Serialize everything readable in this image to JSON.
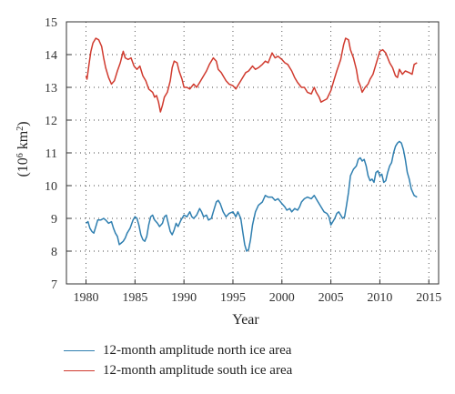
{
  "chart_data": {
    "type": "line",
    "xlabel": "Year",
    "ylabel_base": "(10",
    "ylabel_exp1": "6",
    "ylabel_unit": " km",
    "ylabel_exp2": "2",
    "ylabel_close": ")",
    "xlim": [
      1978,
      2016
    ],
    "ylim": [
      7,
      15
    ],
    "xticks": [
      "1980",
      "1985",
      "1990",
      "1995",
      "2000",
      "2005",
      "2010",
      "2015"
    ],
    "yticks": [
      "7",
      "8",
      "9",
      "10",
      "11",
      "12",
      "13",
      "14",
      "15"
    ],
    "grid": "dotted",
    "legend_position": "bottom",
    "series": [
      {
        "name": "12-month amplitude north ice area",
        "color": "#2f7fb0",
        "points": [
          [
            1980.0,
            8.85
          ],
          [
            1980.2,
            8.9
          ],
          [
            1980.4,
            8.7
          ],
          [
            1980.6,
            8.6
          ],
          [
            1980.8,
            8.55
          ],
          [
            1981.0,
            8.75
          ],
          [
            1981.2,
            8.95
          ],
          [
            1981.5,
            8.95
          ],
          [
            1981.8,
            9.0
          ],
          [
            1982.0,
            8.95
          ],
          [
            1982.3,
            8.85
          ],
          [
            1982.6,
            8.9
          ],
          [
            1982.8,
            8.7
          ],
          [
            1983.0,
            8.55
          ],
          [
            1983.2,
            8.45
          ],
          [
            1983.4,
            8.2
          ],
          [
            1983.6,
            8.25
          ],
          [
            1983.8,
            8.3
          ],
          [
            1984.0,
            8.4
          ],
          [
            1984.2,
            8.55
          ],
          [
            1984.5,
            8.7
          ],
          [
            1984.8,
            8.95
          ],
          [
            1985.0,
            9.05
          ],
          [
            1985.2,
            9.0
          ],
          [
            1985.4,
            8.8
          ],
          [
            1985.6,
            8.5
          ],
          [
            1985.8,
            8.35
          ],
          [
            1986.0,
            8.3
          ],
          [
            1986.2,
            8.45
          ],
          [
            1986.4,
            8.8
          ],
          [
            1986.6,
            9.05
          ],
          [
            1986.8,
            9.1
          ],
          [
            1987.0,
            8.95
          ],
          [
            1987.3,
            8.85
          ],
          [
            1987.5,
            8.75
          ],
          [
            1987.8,
            8.85
          ],
          [
            1988.0,
            9.05
          ],
          [
            1988.2,
            9.1
          ],
          [
            1988.4,
            8.85
          ],
          [
            1988.6,
            8.6
          ],
          [
            1988.8,
            8.5
          ],
          [
            1989.0,
            8.65
          ],
          [
            1989.2,
            8.85
          ],
          [
            1989.4,
            8.75
          ],
          [
            1989.7,
            8.95
          ],
          [
            1990.0,
            9.1
          ],
          [
            1990.3,
            9.05
          ],
          [
            1990.6,
            9.2
          ],
          [
            1990.8,
            9.05
          ],
          [
            1991.0,
            9.0
          ],
          [
            1991.3,
            9.1
          ],
          [
            1991.6,
            9.3
          ],
          [
            1991.8,
            9.2
          ],
          [
            1992.0,
            9.05
          ],
          [
            1992.3,
            9.1
          ],
          [
            1992.5,
            8.95
          ],
          [
            1992.8,
            9.0
          ],
          [
            1993.0,
            9.2
          ],
          [
            1993.3,
            9.5
          ],
          [
            1993.5,
            9.55
          ],
          [
            1993.7,
            9.45
          ],
          [
            1994.0,
            9.2
          ],
          [
            1994.3,
            9.05
          ],
          [
            1994.6,
            9.15
          ],
          [
            1995.0,
            9.2
          ],
          [
            1995.3,
            9.05
          ],
          [
            1995.5,
            9.2
          ],
          [
            1995.8,
            9.0
          ],
          [
            1996.0,
            8.6
          ],
          [
            1996.2,
            8.2
          ],
          [
            1996.4,
            8.0
          ],
          [
            1996.6,
            8.05
          ],
          [
            1996.8,
            8.35
          ],
          [
            1997.0,
            8.8
          ],
          [
            1997.3,
            9.2
          ],
          [
            1997.6,
            9.4
          ],
          [
            1998.0,
            9.5
          ],
          [
            1998.3,
            9.7
          ],
          [
            1998.6,
            9.65
          ],
          [
            1999.0,
            9.65
          ],
          [
            1999.3,
            9.55
          ],
          [
            1999.6,
            9.6
          ],
          [
            2000.0,
            9.45
          ],
          [
            2000.3,
            9.35
          ],
          [
            2000.5,
            9.25
          ],
          [
            2000.8,
            9.3
          ],
          [
            2001.0,
            9.2
          ],
          [
            2001.3,
            9.3
          ],
          [
            2001.6,
            9.25
          ],
          [
            2001.8,
            9.35
          ],
          [
            2002.0,
            9.5
          ],
          [
            2002.3,
            9.6
          ],
          [
            2002.6,
            9.65
          ],
          [
            2003.0,
            9.6
          ],
          [
            2003.3,
            9.7
          ],
          [
            2003.6,
            9.55
          ],
          [
            2004.0,
            9.35
          ],
          [
            2004.3,
            9.2
          ],
          [
            2004.6,
            9.15
          ],
          [
            2004.8,
            9.05
          ],
          [
            2005.0,
            8.8
          ],
          [
            2005.2,
            8.9
          ],
          [
            2005.4,
            9.0
          ],
          [
            2005.6,
            9.15
          ],
          [
            2005.8,
            9.2
          ],
          [
            2006.0,
            9.1
          ],
          [
            2006.2,
            9.0
          ],
          [
            2006.4,
            9.05
          ],
          [
            2006.6,
            9.4
          ],
          [
            2006.8,
            9.8
          ],
          [
            2007.0,
            10.3
          ],
          [
            2007.3,
            10.5
          ],
          [
            2007.6,
            10.6
          ],
          [
            2007.8,
            10.8
          ],
          [
            2008.0,
            10.85
          ],
          [
            2008.2,
            10.75
          ],
          [
            2008.4,
            10.8
          ],
          [
            2008.6,
            10.6
          ],
          [
            2008.8,
            10.3
          ],
          [
            2009.0,
            10.15
          ],
          [
            2009.2,
            10.2
          ],
          [
            2009.4,
            10.1
          ],
          [
            2009.6,
            10.4
          ],
          [
            2009.8,
            10.45
          ],
          [
            2010.0,
            10.3
          ],
          [
            2010.2,
            10.35
          ],
          [
            2010.4,
            10.1
          ],
          [
            2010.6,
            10.15
          ],
          [
            2010.8,
            10.4
          ],
          [
            2011.0,
            10.6
          ],
          [
            2011.2,
            10.7
          ],
          [
            2011.4,
            11.0
          ],
          [
            2011.6,
            11.2
          ],
          [
            2011.8,
            11.3
          ],
          [
            2012.0,
            11.35
          ],
          [
            2012.2,
            11.3
          ],
          [
            2012.4,
            11.1
          ],
          [
            2012.6,
            10.8
          ],
          [
            2012.8,
            10.4
          ],
          [
            2013.0,
            10.2
          ],
          [
            2013.2,
            9.9
          ],
          [
            2013.5,
            9.7
          ],
          [
            2013.8,
            9.65
          ]
        ]
      },
      {
        "name": "12-month amplitude south ice area",
        "color": "#d03a2e",
        "points": [
          [
            1980.0,
            13.35
          ],
          [
            1980.1,
            13.25
          ],
          [
            1980.3,
            13.7
          ],
          [
            1980.5,
            14.1
          ],
          [
            1980.7,
            14.35
          ],
          [
            1981.0,
            14.5
          ],
          [
            1981.3,
            14.45
          ],
          [
            1981.6,
            14.25
          ],
          [
            1981.8,
            13.9
          ],
          [
            1982.0,
            13.6
          ],
          [
            1982.3,
            13.3
          ],
          [
            1982.6,
            13.1
          ],
          [
            1982.9,
            13.2
          ],
          [
            1983.2,
            13.5
          ],
          [
            1983.5,
            13.75
          ],
          [
            1983.8,
            14.1
          ],
          [
            1984.0,
            13.9
          ],
          [
            1984.3,
            13.85
          ],
          [
            1984.6,
            13.9
          ],
          [
            1984.9,
            13.65
          ],
          [
            1985.2,
            13.55
          ],
          [
            1985.5,
            13.65
          ],
          [
            1985.8,
            13.35
          ],
          [
            1986.1,
            13.2
          ],
          [
            1986.4,
            12.95
          ],
          [
            1986.8,
            12.85
          ],
          [
            1987.0,
            12.7
          ],
          [
            1987.2,
            12.75
          ],
          [
            1987.4,
            12.55
          ],
          [
            1987.6,
            12.25
          ],
          [
            1987.8,
            12.45
          ],
          [
            1988.0,
            12.7
          ],
          [
            1988.3,
            12.85
          ],
          [
            1988.6,
            13.2
          ],
          [
            1988.8,
            13.6
          ],
          [
            1989.0,
            13.8
          ],
          [
            1989.3,
            13.75
          ],
          [
            1989.5,
            13.5
          ],
          [
            1989.8,
            13.25
          ],
          [
            1990.0,
            13.0
          ],
          [
            1990.3,
            13.0
          ],
          [
            1990.6,
            12.95
          ],
          [
            1991.0,
            13.1
          ],
          [
            1991.3,
            13.0
          ],
          [
            1991.6,
            13.15
          ],
          [
            1992.0,
            13.35
          ],
          [
            1992.3,
            13.5
          ],
          [
            1992.6,
            13.7
          ],
          [
            1993.0,
            13.9
          ],
          [
            1993.3,
            13.8
          ],
          [
            1993.5,
            13.55
          ],
          [
            1993.8,
            13.45
          ],
          [
            1994.0,
            13.35
          ],
          [
            1994.3,
            13.2
          ],
          [
            1994.6,
            13.1
          ],
          [
            1995.0,
            13.05
          ],
          [
            1995.3,
            12.95
          ],
          [
            1995.6,
            13.1
          ],
          [
            1996.0,
            13.3
          ],
          [
            1996.3,
            13.45
          ],
          [
            1996.6,
            13.5
          ],
          [
            1997.0,
            13.65
          ],
          [
            1997.3,
            13.55
          ],
          [
            1997.6,
            13.6
          ],
          [
            1998.0,
            13.7
          ],
          [
            1998.3,
            13.8
          ],
          [
            1998.6,
            13.75
          ],
          [
            1999.0,
            14.05
          ],
          [
            1999.3,
            13.9
          ],
          [
            1999.6,
            13.95
          ],
          [
            2000.0,
            13.85
          ],
          [
            2000.3,
            13.75
          ],
          [
            2000.6,
            13.7
          ],
          [
            2001.0,
            13.5
          ],
          [
            2001.3,
            13.3
          ],
          [
            2001.6,
            13.15
          ],
          [
            2002.0,
            13.0
          ],
          [
            2002.3,
            13.0
          ],
          [
            2002.6,
            12.85
          ],
          [
            2003.0,
            12.8
          ],
          [
            2003.3,
            13.0
          ],
          [
            2003.5,
            12.85
          ],
          [
            2003.8,
            12.7
          ],
          [
            2004.0,
            12.55
          ],
          [
            2004.3,
            12.6
          ],
          [
            2004.6,
            12.65
          ],
          [
            2005.0,
            12.9
          ],
          [
            2005.3,
            13.2
          ],
          [
            2005.6,
            13.5
          ],
          [
            2006.0,
            13.85
          ],
          [
            2006.3,
            14.3
          ],
          [
            2006.5,
            14.5
          ],
          [
            2006.8,
            14.45
          ],
          [
            2007.0,
            14.15
          ],
          [
            2007.3,
            13.9
          ],
          [
            2007.6,
            13.55
          ],
          [
            2007.8,
            13.2
          ],
          [
            2008.0,
            13.05
          ],
          [
            2008.2,
            12.85
          ],
          [
            2008.5,
            13.0
          ],
          [
            2008.8,
            13.1
          ],
          [
            2009.0,
            13.25
          ],
          [
            2009.3,
            13.4
          ],
          [
            2009.6,
            13.7
          ],
          [
            2010.0,
            14.1
          ],
          [
            2010.3,
            14.15
          ],
          [
            2010.6,
            14.05
          ],
          [
            2011.0,
            13.75
          ],
          [
            2011.3,
            13.6
          ],
          [
            2011.6,
            13.35
          ],
          [
            2011.8,
            13.3
          ],
          [
            2012.0,
            13.55
          ],
          [
            2012.3,
            13.4
          ],
          [
            2012.6,
            13.5
          ],
          [
            2013.0,
            13.45
          ],
          [
            2013.3,
            13.4
          ],
          [
            2013.5,
            13.7
          ],
          [
            2013.8,
            13.75
          ]
        ]
      }
    ]
  }
}
